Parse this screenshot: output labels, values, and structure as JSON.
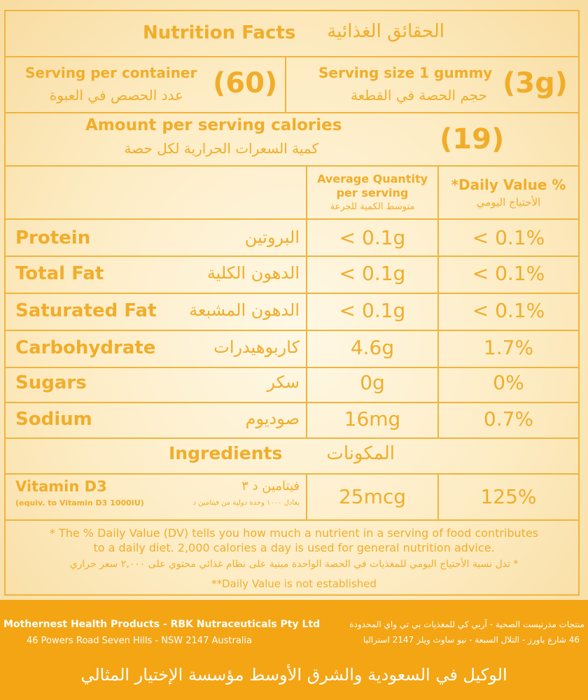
{
  "header": {
    "title_en": "Nutrition Facts",
    "title_ar": "الحقائق الغذائية"
  },
  "serving": {
    "per_container_en": "Serving per container",
    "per_container_ar": "عدد الحصص في العبوة",
    "per_container_value": "(60)",
    "size_en": "Serving size 1 gummy",
    "size_ar": "حجم الحصة في القطعة",
    "size_value": "(3g)"
  },
  "calories": {
    "label_en": "Amount per serving calories",
    "label_ar": "كمية السعرات الحرارية لكل حصة",
    "value": "(19)"
  },
  "columns": {
    "avg_en_1": "Average Quantity",
    "avg_en_2": "per serving",
    "avg_ar": "متوسط الكمية للجرعة",
    "dv_en": "*Daily Value %",
    "dv_ar": "الأحتياج اليومي"
  },
  "rows": [
    {
      "en": "Protein",
      "ar": "البروتين",
      "qty": "< 0.1g",
      "dv": "< 0.1%"
    },
    {
      "en": "Total Fat",
      "ar": "الدهون الكلية",
      "qty": "< 0.1g",
      "dv": "< 0.1%"
    },
    {
      "en": "Saturated Fat",
      "ar": "الدهون المشبعة",
      "qty": "< 0.1g",
      "dv": "< 0.1%"
    },
    {
      "en": "Carbohydrate",
      "ar": "كاربوهيدرات",
      "qty": "4.6g",
      "dv": "1.7%"
    },
    {
      "en": "Sugars",
      "ar": "سكر",
      "qty": "0g",
      "dv": "0%"
    },
    {
      "en": "Sodium",
      "ar": "صوديوم",
      "qty": "16mg",
      "dv": "0.7%"
    }
  ],
  "ingredients": {
    "heading_en": "Ingredients",
    "heading_ar": "المكونات",
    "item_en": "Vitamin D3",
    "item_en_sub": "(equiv. to Vitamin D3 1000IU)",
    "item_ar": "فيتامين د ٣",
    "item_ar_sub": "يعادل ١٠٠٠ وحدة دولية من فيتامين د",
    "qty": "25mcg",
    "dv": "125%"
  },
  "notes": {
    "line1": "* The % Daily Value (DV) tells you how much a nutrient in a serving of food contributes",
    "line2": "to a daily diet. 2,000 calories a day is used for general nutrition advice.",
    "line_ar": "* تدل نسبة الأحتياج اليومي للمغذيات في الحصة الواحدة مبنية على نظام غذائي محتوي على ٢,٠٠٠ سعر حراري",
    "line3": "**Daily Value is not established"
  },
  "footer": {
    "company_en": "Mothernest Health Products - RBK Nutraceuticals Pty Ltd",
    "address_en": "46 Powers Road Seven Hills - NSW 2147 Australia",
    "company_ar": "منتجات مذرنيست الصحية - آربي كي للمغذيات بي تي واي المحدودة",
    "address_ar": "46 شارع باورز - التلال السبعة - نيو ساوث ويلز 2147 استراليا",
    "agent_ar": "الوكيل في السعودية والشرق الأوسط مؤسسة الإختيار المثالي"
  },
  "colors": {
    "accent": "#f1ad2a",
    "border": "#f0b43c",
    "footer_bg": "#f3a514"
  }
}
